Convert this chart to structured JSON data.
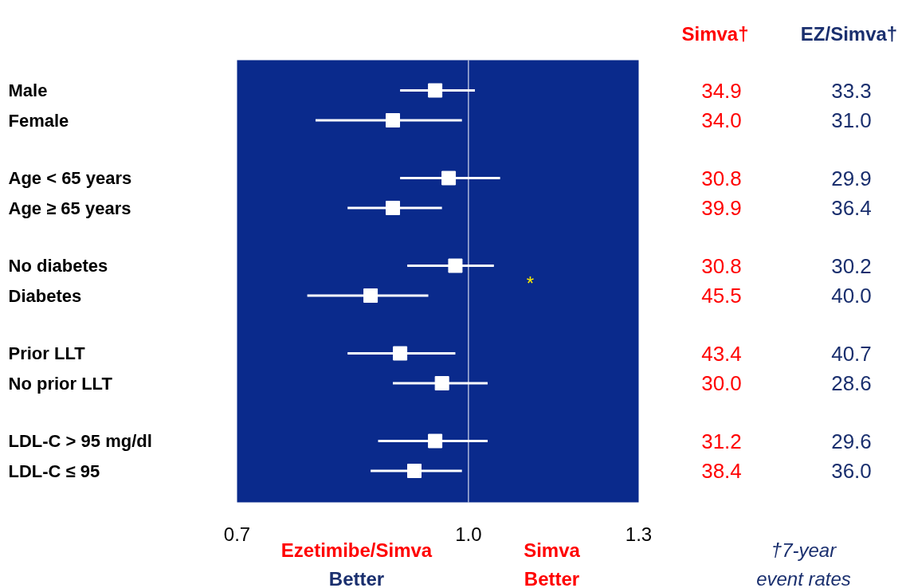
{
  "chart_data": {
    "type": "scatter",
    "orientation": "horizontal",
    "log": "x",
    "marker": "square",
    "color": "#ffffff",
    "categories": [
      "Male",
      "Female",
      "Age < 65 years",
      "Age ≥ 65 years",
      "No diabetes",
      "Diabetes",
      "Prior LLT",
      "No prior LLT",
      "LDL-C > 95 mg/dl",
      "LDL-C ≤ 95"
    ],
    "values": [
      0.95,
      0.89,
      0.97,
      0.89,
      0.98,
      0.86,
      0.9,
      0.96,
      0.95,
      0.92
    ],
    "errors": [
      [
        0.9,
        1.01
      ],
      [
        0.79,
        0.99
      ],
      [
        0.9,
        1.05
      ],
      [
        0.83,
        0.96
      ],
      [
        0.91,
        1.04
      ],
      [
        0.78,
        0.94
      ],
      [
        0.83,
        0.98
      ],
      [
        0.89,
        1.03
      ],
      [
        0.87,
        1.03
      ],
      [
        0.86,
        0.99
      ]
    ],
    "xlim": [
      0.7,
      1.3
    ],
    "xticks": [
      0.7,
      {
        "value": 1.0,
        "label": "1.0"
      },
      1.3
    ],
    "ref_lines": [
      {
        "axis": "x",
        "value": 1.0,
        "color": "#ffffff"
      }
    ],
    "annotations": [
      "Simva†",
      "EZ/Simva†",
      "34.9",
      "33.3",
      "34.0",
      "31.0",
      "30.8",
      "29.9",
      "39.9",
      "36.4",
      "30.8",
      "30.2",
      "45.5",
      "40.0",
      "43.4",
      "40.7",
      "30.0",
      "28.6",
      "31.2",
      "29.6",
      "38.4",
      "36.0",
      "Ezetimibe/Simva\nBetter",
      "Simva\nBetter",
      "†7-year\nevent rates",
      "*"
    ]
  }
}
